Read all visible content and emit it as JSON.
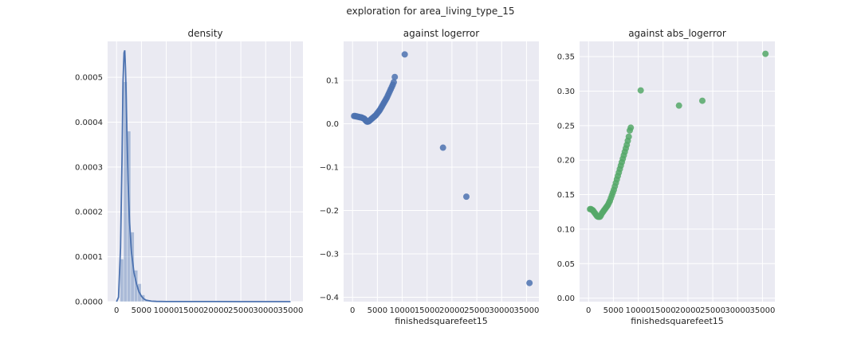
{
  "figure": {
    "suptitle": "exploration for area_living_type_15"
  },
  "colors": {
    "blue": "#4C72B0",
    "green": "#55A868",
    "axes_bg": "#EAEAF2"
  },
  "chart_data": [
    {
      "type": "bar",
      "title": "density",
      "xlabel": "",
      "ylabel": "",
      "xlim": [
        -1800,
        37500
      ],
      "ylim": [
        0,
        0.00058
      ],
      "grid": true,
      "xticks": [
        0,
        5000,
        10000,
        15000,
        20000,
        25000,
        30000,
        35000
      ],
      "yticks": [
        0.0,
        0.0001,
        0.0002,
        0.0003,
        0.0004,
        0.0005
      ],
      "ytick_labels": [
        "0.0000",
        "0.0001",
        "0.0002",
        "0.0003",
        "0.0004",
        "0.0005"
      ],
      "histogram": {
        "bin_edges": [
          0,
          710,
          1420,
          2130,
          2840,
          3550,
          4260,
          4970,
          5680,
          6390,
          7100
        ],
        "values": [
          0.0,
          9.5e-05,
          0.00049,
          0.00038,
          0.000155,
          7e-05,
          4e-05,
          1.5e-05,
          5e-06,
          2e-06
        ]
      },
      "kde": {
        "x": [
          0,
          400,
          800,
          1100,
          1300,
          1500,
          1650,
          1800,
          1950,
          2100,
          2300,
          2600,
          3000,
          3500,
          4000,
          4500,
          5000,
          5500,
          6000,
          7000,
          8000,
          10000,
          15000,
          20000,
          25000,
          30000,
          35000
        ],
        "y": [
          0.0,
          1e-05,
          0.00012,
          0.00032,
          0.00049,
          0.000555,
          0.00056,
          0.00052,
          0.00045,
          0.00037,
          0.00027,
          0.00018,
          0.00011,
          6.5e-05,
          4e-05,
          2.2e-05,
          1.2e-05,
          6e-06,
          3e-06,
          1e-06,
          5e-07,
          2e-07,
          1e-07,
          1e-07,
          5e-08,
          5e-08,
          0.0
        ]
      }
    },
    {
      "type": "scatter",
      "title": "against logerror",
      "xlabel": "finishedsquarefeet15",
      "ylabel": "",
      "xlim": [
        -1800,
        37500
      ],
      "ylim": [
        -0.41,
        0.19
      ],
      "grid": true,
      "xticks": [
        0,
        5000,
        10000,
        15000,
        20000,
        25000,
        30000,
        35000
      ],
      "yticks": [
        -0.4,
        -0.3,
        -0.2,
        -0.1,
        0.0,
        0.1
      ],
      "ytick_labels": [
        "−0.4",
        "−0.3",
        "−0.2",
        "−0.1",
        "0.0",
        "0.1"
      ],
      "series": [
        {
          "x": [
            300,
            500,
            700,
            900,
            1100,
            1300,
            1500,
            1700,
            1900,
            2100,
            2300,
            2500,
            2700,
            2900,
            3100,
            3300,
            3500,
            3700,
            3900,
            4100,
            4300,
            4500,
            4700,
            4900,
            5100,
            5300,
            5500,
            5700,
            5900,
            6100,
            6300,
            6500,
            6700,
            6900,
            7100,
            7300,
            7500,
            7700,
            7900,
            8100,
            8300,
            8500,
            10500,
            18200,
            22900,
            35600
          ],
          "y": [
            0.018,
            0.018,
            0.017,
            0.017,
            0.016,
            0.016,
            0.015,
            0.015,
            0.014,
            0.013,
            0.012,
            0.01,
            0.007,
            0.005,
            0.005,
            0.006,
            0.008,
            0.01,
            0.012,
            0.014,
            0.016,
            0.018,
            0.02,
            0.023,
            0.026,
            0.029,
            0.032,
            0.036,
            0.04,
            0.044,
            0.048,
            0.052,
            0.056,
            0.06,
            0.065,
            0.07,
            0.075,
            0.08,
            0.085,
            0.09,
            0.096,
            0.108,
            0.16,
            -0.055,
            -0.168,
            -0.367
          ]
        }
      ]
    },
    {
      "type": "scatter",
      "title": "against abs_logerror",
      "xlabel": "finishedsquarefeet15",
      "ylabel": "",
      "xlim": [
        -1800,
        37500
      ],
      "ylim": [
        -0.005,
        0.372
      ],
      "grid": true,
      "xticks": [
        0,
        5000,
        10000,
        15000,
        20000,
        25000,
        30000,
        35000
      ],
      "yticks": [
        0.0,
        0.05,
        0.1,
        0.15,
        0.2,
        0.25,
        0.3,
        0.35
      ],
      "ytick_labels": [
        "0.00",
        "0.05",
        "0.10",
        "0.15",
        "0.20",
        "0.25",
        "0.30",
        "0.35"
      ],
      "series": [
        {
          "x": [
            300,
            500,
            700,
            900,
            1100,
            1300,
            1500,
            1700,
            1900,
            2100,
            2300,
            2500,
            2700,
            2900,
            3100,
            3300,
            3500,
            3700,
            3900,
            4100,
            4300,
            4500,
            4700,
            4900,
            5100,
            5300,
            5500,
            5700,
            5900,
            6100,
            6300,
            6500,
            6700,
            6900,
            7100,
            7300,
            7500,
            7700,
            7900,
            8100,
            8300,
            8500,
            10500,
            18200,
            22900,
            35600
          ],
          "y": [
            0.129,
            0.129,
            0.128,
            0.127,
            0.125,
            0.123,
            0.121,
            0.119,
            0.118,
            0.118,
            0.118,
            0.12,
            0.123,
            0.125,
            0.127,
            0.129,
            0.131,
            0.133,
            0.135,
            0.138,
            0.141,
            0.145,
            0.149,
            0.153,
            0.157,
            0.162,
            0.167,
            0.172,
            0.177,
            0.182,
            0.187,
            0.192,
            0.197,
            0.202,
            0.207,
            0.212,
            0.217,
            0.222,
            0.228,
            0.234,
            0.243,
            0.247,
            0.301,
            0.279,
            0.286,
            0.354
          ]
        }
      ]
    }
  ]
}
